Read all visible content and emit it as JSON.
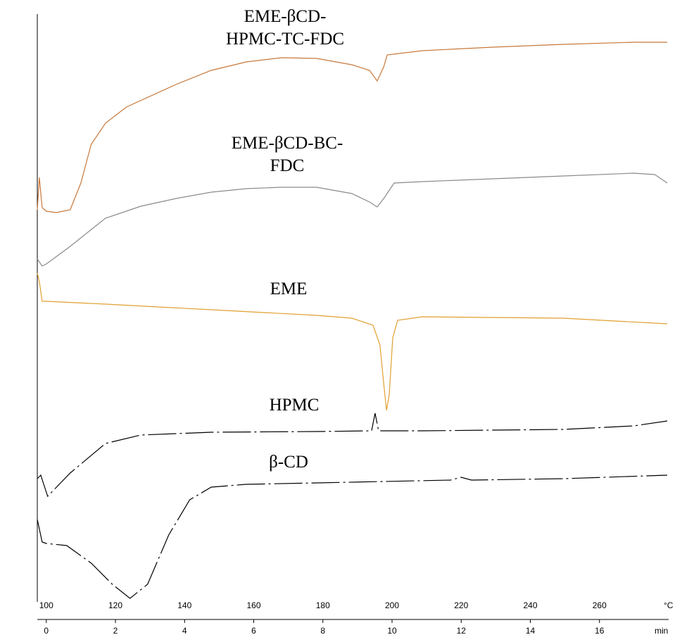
{
  "chart_data": {
    "type": "line",
    "xlabel": "min",
    "x2label": "°C",
    "xlim": [
      -0.26,
      18
    ],
    "xticks": [
      0,
      2,
      4,
      6,
      8,
      10,
      12,
      14,
      16
    ],
    "x2lim": [
      97.4,
      280
    ],
    "x2ticks": [
      100,
      120,
      140,
      160,
      180,
      200,
      220,
      240,
      260
    ],
    "ylim": [
      0,
      840
    ],
    "series": [
      {
        "name": "EME-βCD-HPMC-TC-FDC",
        "color": "#c8783a",
        "x": [
          -0.26,
          -0.2,
          -0.12,
          0,
          0.29,
          0.69,
          1.0,
          1.3,
          1.71,
          2.32,
          3.75,
          4.77,
          5.78,
          6.8,
          7.82,
          8.84,
          9.35,
          9.57,
          9.76,
          9.86,
          10.88,
          12.91,
          14.95,
          16.99,
          17.96
        ],
        "values": [
          562,
          608,
          565,
          560,
          558,
          562,
          600,
          655,
          685,
          708,
          740,
          760,
          772,
          778,
          777,
          768,
          760,
          745,
          765,
          782,
          788,
          793,
          797,
          800,
          800
        ]
      },
      {
        "name": "EME-βCD-BC-FDC",
        "color": "#8a8a8a",
        "x": [
          -0.26,
          -0.12,
          0,
          0.69,
          1.71,
          2.73,
          3.75,
          4.77,
          5.78,
          6.8,
          7.82,
          8.84,
          9.35,
          9.57,
          9.76,
          10.06,
          10.88,
          12.91,
          14.95,
          16.99,
          17.6,
          17.96
        ],
        "values": [
          492,
          482,
          485,
          510,
          550,
          567,
          578,
          587,
          592,
          594,
          594,
          585,
          573,
          566,
          578,
          600,
          602,
          606,
          610,
          614,
          612,
          600
        ]
      },
      {
        "name": "EME",
        "color": "#e0a030",
        "x": [
          -0.26,
          -0.2,
          -0.12,
          0,
          1.71,
          4.77,
          7.82,
          8.84,
          9.45,
          9.65,
          9.76,
          9.84,
          9.92,
          10.02,
          10.16,
          10.88,
          14.95,
          17.96
        ],
        "values": [
          472,
          460,
          432,
          432,
          428,
          420,
          412,
          408,
          398,
          370,
          315,
          277,
          300,
          380,
          405,
          410,
          408,
          400
        ]
      },
      {
        "name": "HPMC",
        "color": "#000000",
        "dash": true,
        "x": [
          -0.26,
          -0.16,
          0.04,
          0.69,
          1.71,
          2.73,
          4.77,
          7.82,
          9.41,
          9.51,
          9.61,
          10.88,
          14.95,
          16.99,
          17.96
        ],
        "values": [
          180,
          185,
          155,
          188,
          230,
          242,
          246,
          247,
          248,
          273,
          248,
          248,
          250,
          255,
          262
        ]
      },
      {
        "name": "β-CD",
        "color": "#000000",
        "dash": true,
        "x": [
          -0.26,
          -0.12,
          0,
          0.59,
          1.3,
          1.91,
          2.42,
          2.93,
          3.54,
          4.15,
          4.77,
          5.78,
          7.82,
          11.69,
          12.0,
          12.3,
          14.95,
          17.96
        ],
        "values": [
          122,
          90,
          88,
          85,
          60,
          30,
          10,
          30,
          100,
          150,
          168,
          172,
          174,
          178,
          182,
          178,
          180,
          185
        ]
      }
    ]
  }
}
